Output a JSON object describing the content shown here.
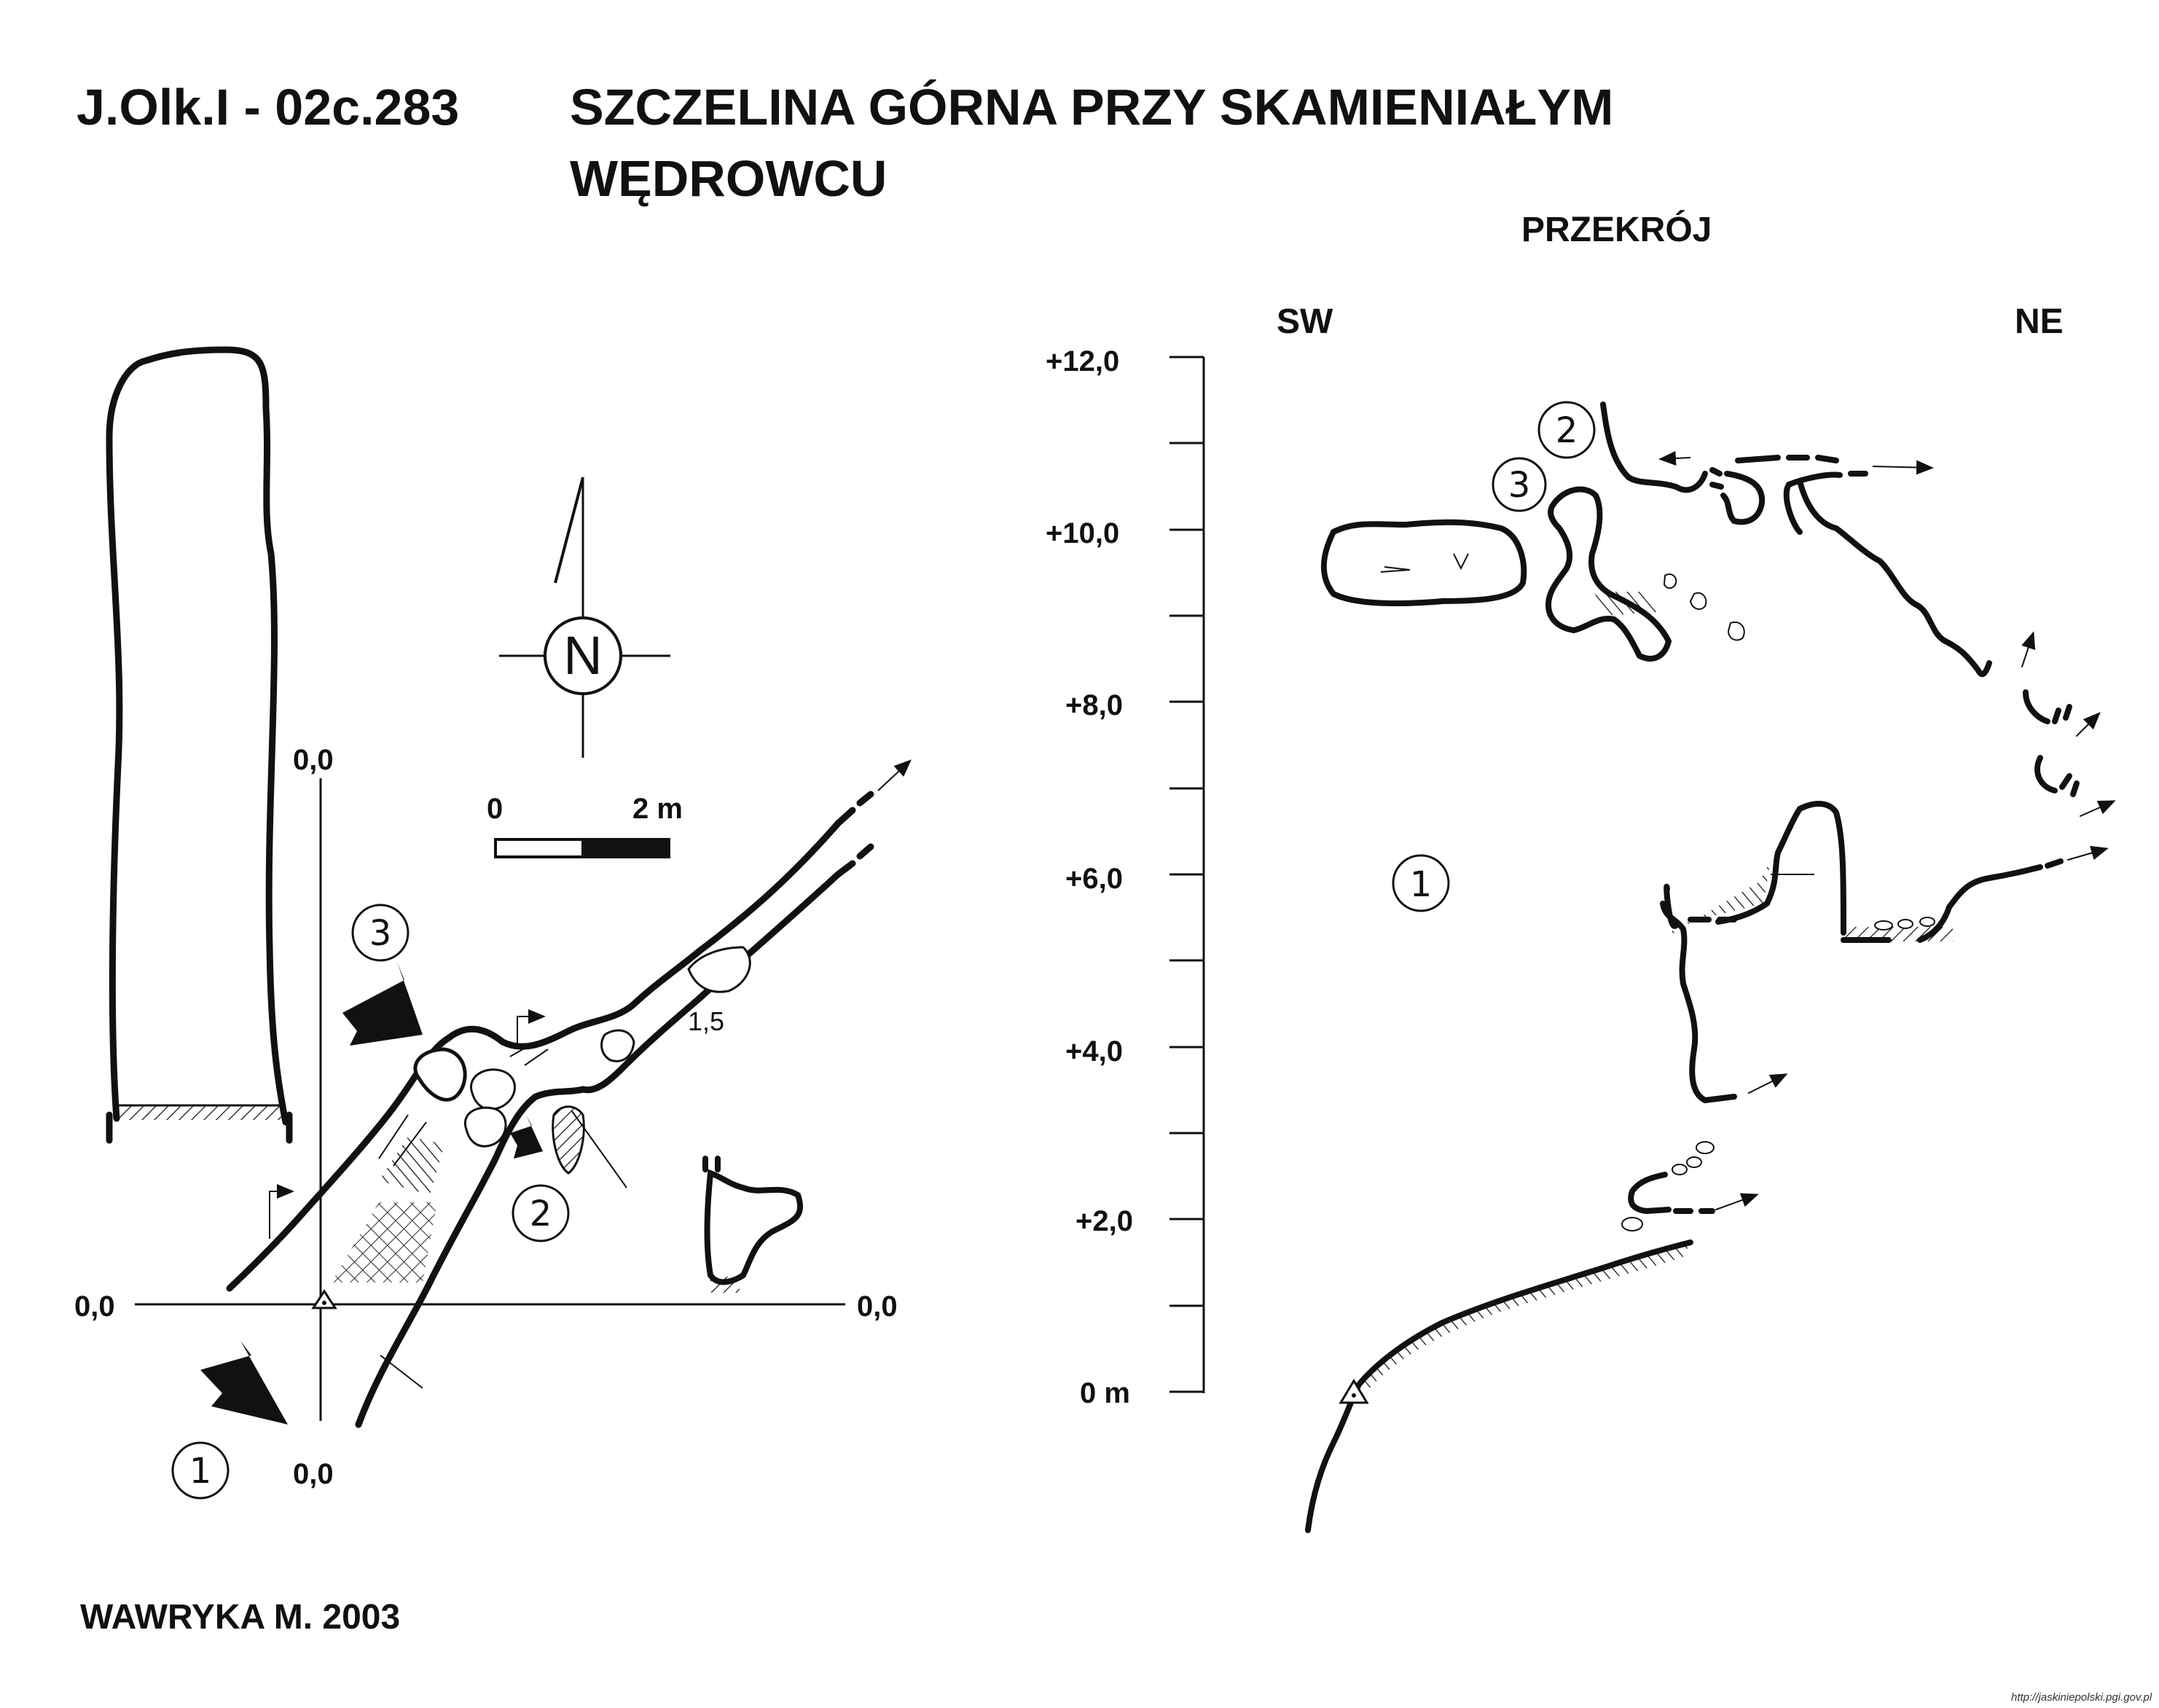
{
  "title": {
    "code": "J.Olk.I - 02c.283",
    "name_line1": "SZCZELINA GÓRNA PRZY SKAMIENIAŁYM",
    "name_line2": "WĘDROWCU"
  },
  "plan": {
    "axis_labels": {
      "top": "0,0",
      "left": "0,0",
      "right": "0,0",
      "bottom": "0,0"
    },
    "north_label": "N",
    "scale": {
      "start": "0",
      "end": "2 m"
    },
    "depth_note": "1,5",
    "entrance_markers": [
      "1",
      "2",
      "3"
    ]
  },
  "section": {
    "title": "PRZEKRÓJ",
    "left_dir": "SW",
    "right_dir": "NE",
    "y_axis_ticks": [
      "+12,0",
      "+10,0",
      "+8,0",
      "+6,0",
      "+4,0",
      "+2,0",
      "0 m"
    ],
    "markers": [
      "1",
      "2",
      "3"
    ]
  },
  "author": "WAWRYKA M. 2003",
  "source_url": "http://jaskiniepolski.pgi.gov.pl",
  "colors": {
    "ink": "#111111",
    "background": "#ffffff"
  }
}
